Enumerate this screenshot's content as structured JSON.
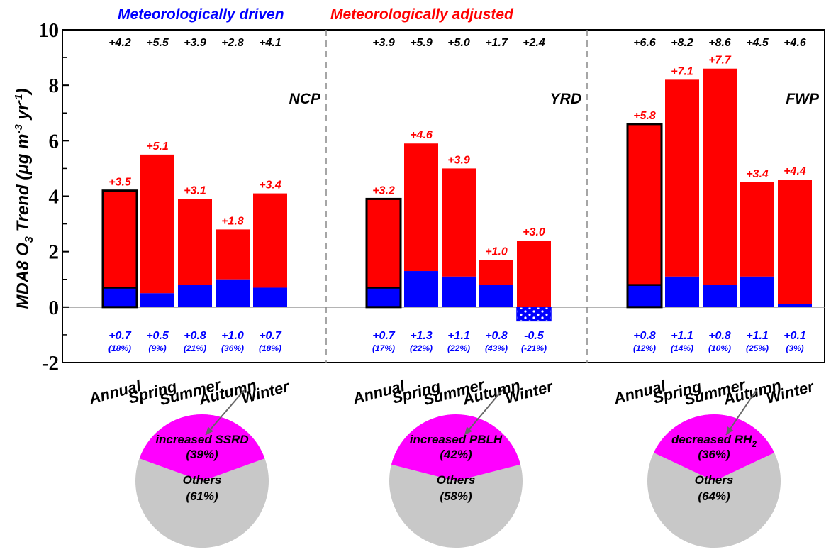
{
  "chart_data": {
    "type": "bar",
    "stacked": true,
    "ylabel_main": "MDA8 O",
    "ylabel_sub": "3",
    "ylabel_trend": " Trend (μg m",
    "ylabel_sup1": "-3",
    "ylabel_yr": " yr",
    "ylabel_sup2": "-1",
    "ylabel_close": ")",
    "ylim": [
      -2,
      10
    ],
    "yticks": [
      "-2",
      "0",
      "2",
      "4",
      "6",
      "8",
      "10"
    ],
    "legend": [
      {
        "label": "Meteorologically driven",
        "color": "#0000ff"
      },
      {
        "label": "Meteorologically adjusted",
        "color": "#ff0000"
      }
    ],
    "categories": [
      "Annual",
      "Spring",
      "Summer",
      "Autumn",
      "Winter"
    ],
    "colors": {
      "driven": "#0000ff",
      "adjusted": "#ff0000",
      "pie_main": "#ff00ff",
      "pie_other": "#c8c8c8"
    },
    "regions": [
      {
        "name": "NCP",
        "total": [
          4.2,
          5.5,
          3.9,
          2.8,
          4.1
        ],
        "total_labels": [
          "+4.2",
          "+5.5",
          "+3.9",
          "+2.8",
          "+4.1"
        ],
        "adjusted_labels": [
          "+3.5",
          "+5.1",
          "+3.1",
          "+1.8",
          "+3.4"
        ],
        "driven": [
          0.7,
          0.5,
          0.8,
          1.0,
          0.7
        ],
        "driven_labels": [
          "+0.7",
          "+0.5",
          "+0.8",
          "+1.0",
          "+0.7"
        ],
        "driven_pct": [
          "(18%)",
          "(9%)",
          "(21%)",
          "(36%)",
          "(18%)"
        ],
        "pie": {
          "main_label": "increased SSRD",
          "main_sub": "",
          "main_pct": "(39%)",
          "main_value": 39,
          "other_label": "Others",
          "other_pct": "(61%)"
        }
      },
      {
        "name": "YRD",
        "total": [
          3.9,
          5.9,
          5.0,
          1.7,
          2.4
        ],
        "total_labels": [
          "+3.9",
          "+5.9",
          "+5.0",
          "+1.7",
          "+2.4"
        ],
        "adjusted_labels": [
          "+3.2",
          "+4.6",
          "+3.9",
          "+1.0",
          "+3.0"
        ],
        "driven": [
          0.7,
          1.3,
          1.1,
          0.8,
          -0.5
        ],
        "driven_labels": [
          "+0.7",
          "+1.3",
          "+1.1",
          "+0.8",
          "-0.5"
        ],
        "driven_pct": [
          "(17%)",
          "(22%)",
          "(22%)",
          "(43%)",
          "(-21%)"
        ],
        "pie": {
          "main_label": "increased PBLH",
          "main_sub": "",
          "main_pct": "(42%)",
          "main_value": 42,
          "other_label": "Others",
          "other_pct": "(58%)"
        }
      },
      {
        "name": "FWP",
        "total": [
          6.6,
          8.2,
          8.6,
          4.5,
          4.6
        ],
        "total_labels": [
          "+6.6",
          "+8.2",
          "+8.6",
          "+4.5",
          "+4.6"
        ],
        "adjusted_labels": [
          "+5.8",
          "+7.1",
          "+7.7",
          "+3.4",
          "+4.4"
        ],
        "driven": [
          0.8,
          1.1,
          0.8,
          1.1,
          0.1
        ],
        "driven_labels": [
          "+0.8",
          "+1.1",
          "+0.8",
          "+1.1",
          "+0.1"
        ],
        "driven_pct": [
          "(12%)",
          "(14%)",
          "(10%)",
          "(25%)",
          "(3%)"
        ],
        "pie": {
          "main_label": "decreased RH",
          "main_sub": "2",
          "main_pct": "(36%)",
          "main_value": 36,
          "other_label": "Others",
          "other_pct": "(64%)"
        }
      }
    ]
  }
}
